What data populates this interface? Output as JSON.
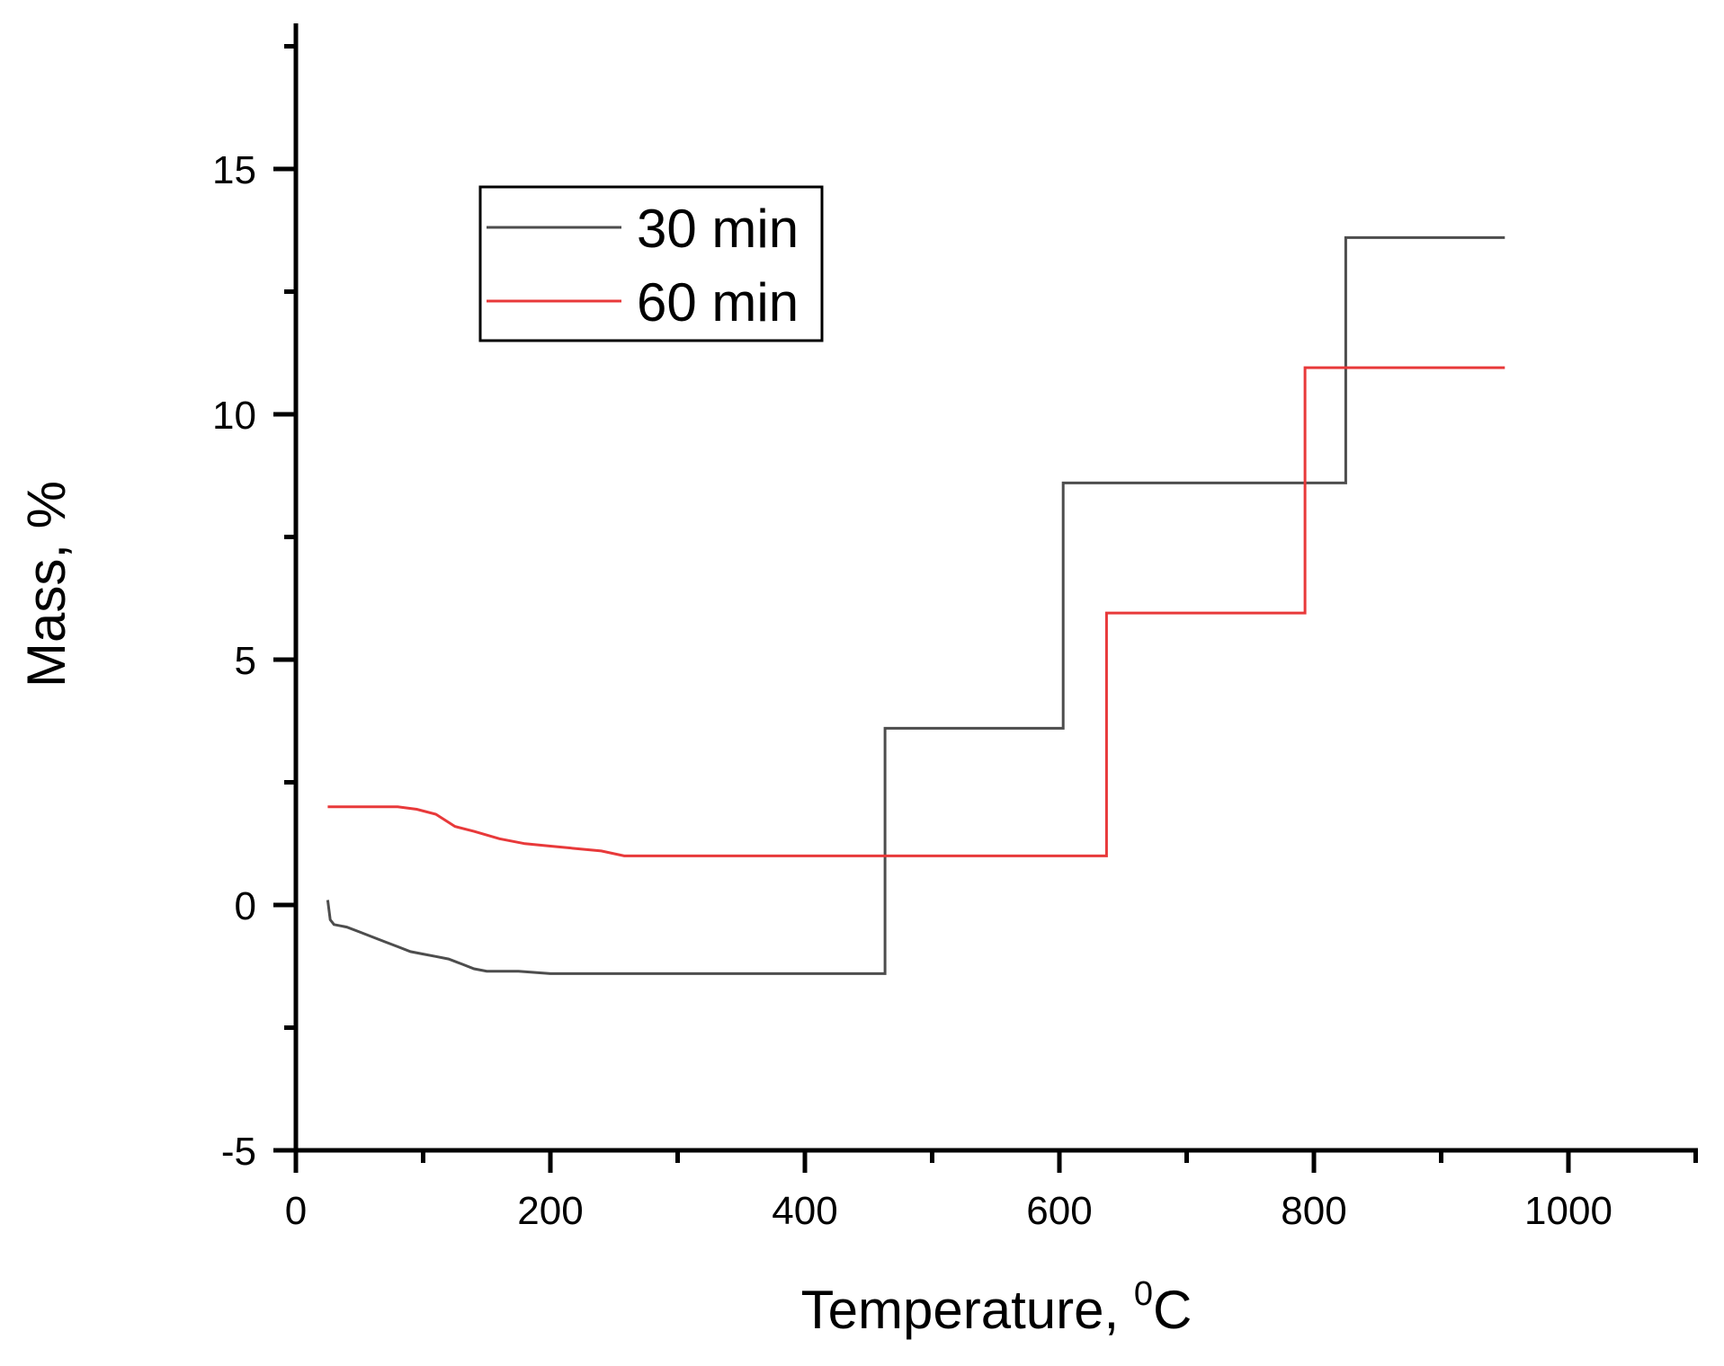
{
  "chart_data": {
    "type": "line",
    "title": "",
    "xlabel": "Temperature, ⁰C",
    "xlabel_main": "Temperature, ",
    "xlabel_sup": "0",
    "xlabel_unit": "C",
    "ylabel": "Mass, %",
    "xlim": [
      0,
      1100
    ],
    "ylim": [
      -5,
      18
    ],
    "xticks": [
      0,
      200,
      400,
      600,
      800,
      1000
    ],
    "yticks": [
      -5,
      0,
      5,
      10,
      15
    ],
    "x_minor_ticks": [
      100,
      300,
      500,
      700,
      900,
      1100
    ],
    "y_minor_ticks": [
      -2.5,
      2.5,
      7.5,
      12.5,
      17.5
    ],
    "grid": false,
    "legend_position": "upper left (inside)",
    "series": [
      {
        "name": "30 min",
        "color": "#4d4d4d",
        "x": [
          25,
          27,
          30,
          40,
          50,
          60,
          70,
          80,
          90,
          100,
          110,
          120,
          130,
          140,
          150,
          175,
          200,
          463,
          463,
          603,
          603,
          825,
          825,
          950
        ],
        "y": [
          0.1,
          -0.3,
          -0.4,
          -0.45,
          -0.55,
          -0.65,
          -0.75,
          -0.85,
          -0.95,
          -1.0,
          -1.05,
          -1.1,
          -1.2,
          -1.3,
          -1.35,
          -1.35,
          -1.4,
          -1.4,
          3.6,
          3.6,
          8.6,
          8.6,
          13.6,
          13.6
        ]
      },
      {
        "name": "60 min",
        "color": "#e8393a",
        "x": [
          25,
          80,
          95,
          110,
          125,
          140,
          160,
          180,
          200,
          220,
          240,
          258,
          637,
          637,
          793,
          793,
          950
        ],
        "y": [
          2.0,
          2.0,
          1.95,
          1.85,
          1.6,
          1.5,
          1.35,
          1.25,
          1.2,
          1.15,
          1.1,
          1.0,
          1.0,
          5.95,
          5.95,
          10.95,
          10.95
        ]
      }
    ]
  },
  "axes": {
    "x_tick_labels": [
      "0",
      "200",
      "400",
      "600",
      "800",
      "1000"
    ],
    "y_tick_labels": [
      "-5",
      "0",
      "5",
      "10",
      "15"
    ]
  },
  "legend": {
    "items": [
      {
        "label": "30 min",
        "color": "#4d4d4d"
      },
      {
        "label": "60 min",
        "color": "#e8393a"
      }
    ]
  }
}
